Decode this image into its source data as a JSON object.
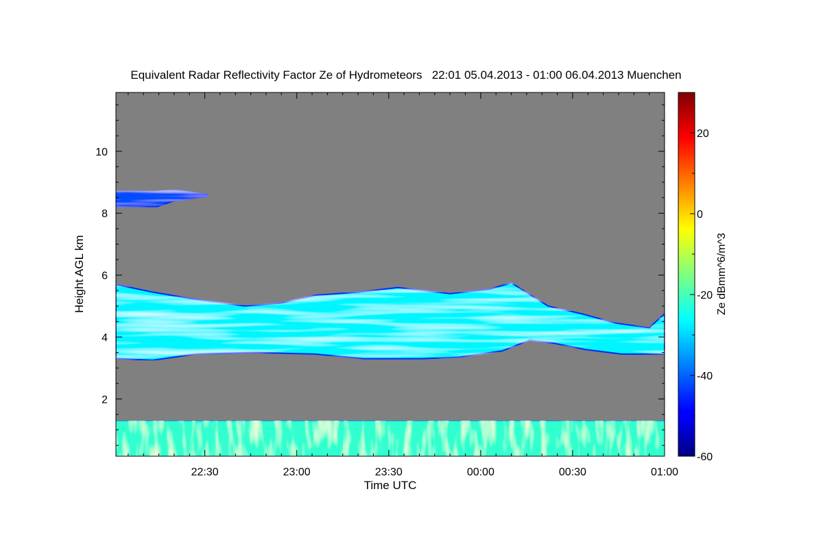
{
  "chart_data": {
    "type": "heatmap",
    "title": "Equivalent Radar Reflectivity Factor Ze of Hydrometeors   22:01 05.04.2013 - 01:00 06.04.2013 Muenchen",
    "xlabel": "Time UTC",
    "ylabel": "Height AGL km",
    "x_range_minutes_utc": [
      1321,
      1500
    ],
    "x_ticks": [
      {
        "value": 1350,
        "label": "22:30"
      },
      {
        "value": 1380,
        "label": "23:00"
      },
      {
        "value": 1410,
        "label": "23:30"
      },
      {
        "value": 1440,
        "label": "00:00"
      },
      {
        "value": 1470,
        "label": "00:30"
      },
      {
        "value": 1500,
        "label": "01:00"
      }
    ],
    "ylim": [
      0.15,
      11.9
    ],
    "y_ticks": [
      2,
      4,
      6,
      8,
      10
    ],
    "background_color": "#808080",
    "colorbar": {
      "label": "Ze dBmm^6/m^3",
      "range": [
        -60,
        30
      ],
      "ticks": [
        -60,
        -40,
        -20,
        0,
        20
      ],
      "colormap": "jet"
    },
    "features": [
      {
        "name": "upper cirrus patch",
        "start_min": 1321,
        "end_min": 1351,
        "top_km": [
          [
            1321,
            8.7
          ],
          [
            1334,
            8.7
          ],
          [
            1340,
            8.75
          ],
          [
            1351,
            8.6
          ]
        ],
        "base_km": [
          [
            1321,
            8.2
          ],
          [
            1334,
            8.2
          ],
          [
            1340,
            8.4
          ],
          [
            1351,
            8.55
          ]
        ],
        "core_ze_dbz": -42
      },
      {
        "name": "mid-level cloud layer",
        "start_min": 1321,
        "end_min": 1500,
        "top_km": [
          [
            1321,
            5.7
          ],
          [
            1333,
            5.45
          ],
          [
            1345,
            5.25
          ],
          [
            1363,
            5.0
          ],
          [
            1375,
            5.1
          ],
          [
            1386,
            5.35
          ],
          [
            1400,
            5.45
          ],
          [
            1413,
            5.6
          ],
          [
            1430,
            5.4
          ],
          [
            1443,
            5.55
          ],
          [
            1450,
            5.75
          ],
          [
            1462,
            5.0
          ],
          [
            1473,
            4.75
          ],
          [
            1484,
            4.45
          ],
          [
            1495,
            4.3
          ],
          [
            1500,
            4.75
          ]
        ],
        "base_km": [
          [
            1321,
            3.3
          ],
          [
            1333,
            3.25
          ],
          [
            1347,
            3.45
          ],
          [
            1366,
            3.5
          ],
          [
            1386,
            3.45
          ],
          [
            1402,
            3.3
          ],
          [
            1421,
            3.3
          ],
          [
            1433,
            3.35
          ],
          [
            1447,
            3.55
          ],
          [
            1456,
            3.9
          ],
          [
            1464,
            3.8
          ],
          [
            1474,
            3.6
          ],
          [
            1486,
            3.45
          ],
          [
            1500,
            3.45
          ]
        ],
        "core_ze_dbz": -27
      },
      {
        "name": "boundary layer echo",
        "start_min": 1321,
        "end_min": 1500,
        "top_km": [
          [
            1321,
            1.3
          ],
          [
            1500,
            1.3
          ]
        ],
        "base_km": [
          [
            1321,
            0.15
          ],
          [
            1500,
            0.15
          ]
        ],
        "core_ze_dbz": -22
      }
    ]
  }
}
